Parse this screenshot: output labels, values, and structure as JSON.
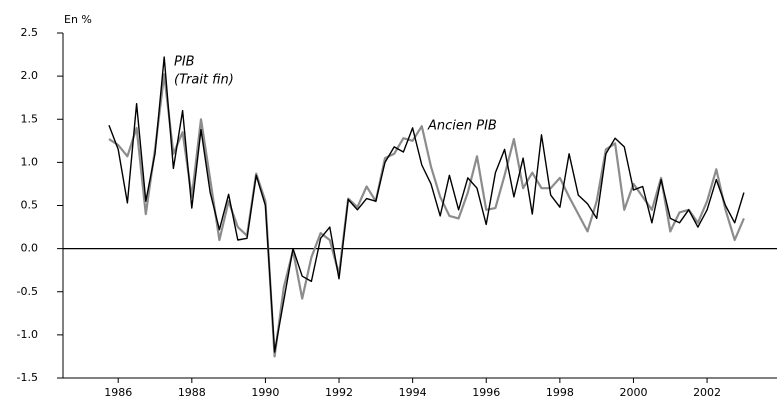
{
  "chart_data": {
    "type": "line",
    "y_label": "En %",
    "annotations": [
      "(Trait fin)"
    ],
    "x": [
      1985.75,
      1986,
      1986.25,
      1986.5,
      1986.75,
      1987,
      1987.25,
      1987.5,
      1987.75,
      1988,
      1988.25,
      1988.5,
      1988.75,
      1989,
      1989.25,
      1989.5,
      1989.75,
      1990,
      1990.25,
      1990.5,
      1990.75,
      1991,
      1991.25,
      1991.5,
      1991.75,
      1992,
      1992.25,
      1992.5,
      1992.75,
      1993,
      1993.25,
      1993.5,
      1993.75,
      1994,
      1994.25,
      1994.5,
      1994.75,
      1995,
      1995.25,
      1995.5,
      1995.75,
      1996,
      1996.25,
      1996.5,
      1996.75,
      1997,
      1997.25,
      1997.5,
      1997.75,
      1998,
      1998.25,
      1998.5,
      1998.75,
      1999,
      1999.25,
      1999.5,
      1999.75,
      2000,
      2000.25,
      2000.5,
      2000.75,
      2001,
      2001.25,
      2001.5,
      2001.75,
      2002,
      2002.25,
      2002.5,
      2002.75,
      2003
    ],
    "series": [
      {
        "name": "PIB",
        "color": "#000000",
        "width": 1.4,
        "values": [
          1.43,
          1.15,
          0.53,
          1.68,
          0.55,
          1.1,
          2.22,
          0.93,
          1.6,
          0.47,
          1.38,
          0.65,
          0.22,
          0.63,
          0.1,
          0.12,
          0.85,
          0.5,
          -1.2,
          -0.6,
          0.0,
          -0.32,
          -0.38,
          0.12,
          0.25,
          -0.35,
          0.57,
          0.45,
          0.58,
          0.55,
          1.0,
          1.18,
          1.12,
          1.4,
          0.97,
          0.75,
          0.38,
          0.85,
          0.45,
          0.82,
          0.7,
          0.28,
          0.88,
          1.15,
          0.6,
          1.05,
          0.4,
          1.32,
          0.62,
          0.48,
          1.1,
          0.62,
          0.52,
          0.35,
          1.1,
          1.28,
          1.18,
          0.68,
          0.72,
          0.3,
          0.8,
          0.35,
          0.3,
          0.45,
          0.25,
          0.45,
          0.8,
          0.5,
          0.3,
          0.65
        ]
      },
      {
        "name": "Ancien PIB",
        "color": "#8c8c8c",
        "width": 2.2,
        "values": [
          1.27,
          1.2,
          1.07,
          1.4,
          0.4,
          1.15,
          2.02,
          1.1,
          1.35,
          0.6,
          1.5,
          0.8,
          0.1,
          0.55,
          0.25,
          0.15,
          0.87,
          0.55,
          -1.25,
          -0.45,
          -0.02,
          -0.58,
          -0.1,
          0.18,
          0.1,
          -0.3,
          0.58,
          0.48,
          0.72,
          0.55,
          1.05,
          1.1,
          1.28,
          1.25,
          1.42,
          0.95,
          0.6,
          0.38,
          0.35,
          0.65,
          1.07,
          0.45,
          0.47,
          0.85,
          1.27,
          0.7,
          0.88,
          0.7,
          0.7,
          0.82,
          0.6,
          0.4,
          0.2,
          0.55,
          1.15,
          1.22,
          0.45,
          0.75,
          0.6,
          0.45,
          0.82,
          0.2,
          0.42,
          0.45,
          0.3,
          0.55,
          0.92,
          0.45,
          0.1,
          0.35
        ]
      }
    ],
    "xlim": [
      1984.5,
      2003.9
    ],
    "xticks": [
      1986,
      1988,
      1990,
      1992,
      1994,
      1996,
      1998,
      2000,
      2002
    ],
    "ylim": [
      -1.5,
      2.5
    ],
    "yticks": [
      2.5,
      {
        "value": 2,
        "label": "2.0"
      },
      1.5,
      {
        "value": 1,
        "label": "1.0"
      },
      0.5,
      {
        "value": 0,
        "label": "0.0"
      },
      -0.5,
      {
        "value": -1,
        "label": "-1.0"
      },
      -1.5
    ],
    "zero_line": true
  }
}
